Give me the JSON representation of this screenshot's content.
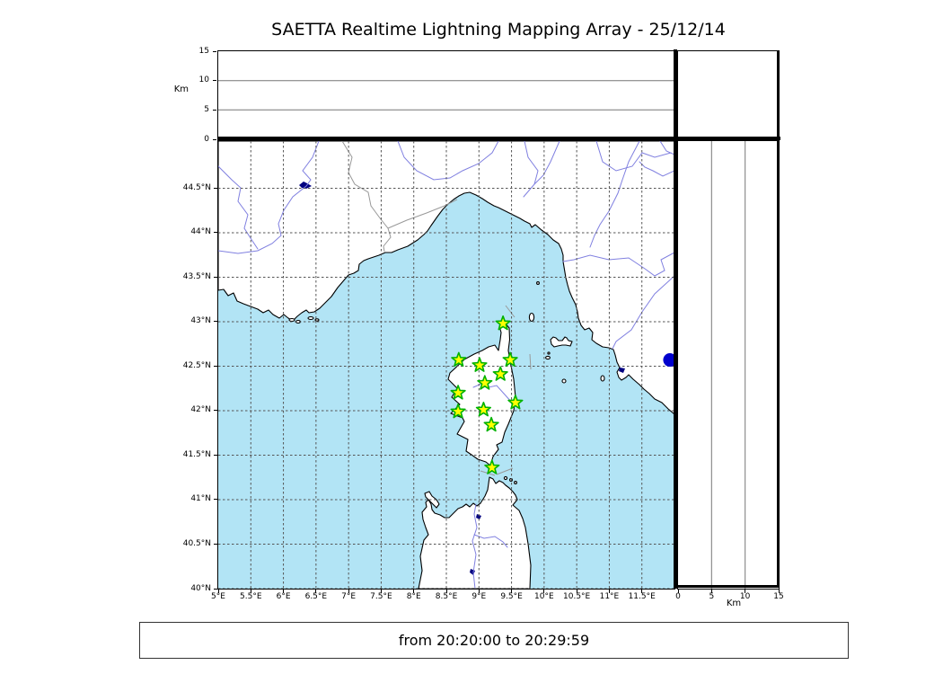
{
  "title": "SAETTA Realtime Lightning Mapping Array - 25/12/14",
  "time_range": "from 20:20:00 to 20:29:59",
  "top_axis": {
    "label": "Km",
    "ticks": [
      "0",
      "5",
      "10",
      "15"
    ]
  },
  "right_axis": {
    "label": "Km",
    "ticks": [
      "0",
      "5",
      "10",
      "15"
    ]
  },
  "map_axes": {
    "lon_ticks": [
      "5°E",
      "5.5°E",
      "6°E",
      "6.5°E",
      "7°E",
      "7.5°E",
      "8°E",
      "8.5°E",
      "9°E",
      "9.5°E",
      "10°E",
      "10.5°E",
      "11°E",
      "11.5°E"
    ],
    "lat_ticks": [
      "44.5°N",
      "44°N",
      "43.5°N",
      "43°N",
      "42.5°N",
      "42°N",
      "41.5°N",
      "41°N",
      "40.5°N",
      "40°N"
    ]
  },
  "colors": {
    "sea": "#b2e4f5",
    "land": "#ffffff",
    "coastline": "#000000",
    "river": "#8080e0",
    "political_border": "#999999",
    "grid": "#555555",
    "panel_grid": "#777777",
    "station_fill": "#ffff00",
    "station_stroke": "#00b200",
    "event_dot": "#0000cd",
    "lake": "#000080"
  },
  "chart_data": {
    "type": "scatter",
    "title": "SAETTA Realtime Lightning Mapping Array - 25/12/14",
    "time_window": {
      "from": "20:20:00",
      "to": "20:29:59"
    },
    "map_extent": {
      "lon": [
        5.0,
        12.0
      ],
      "lat": [
        40.0,
        45.03
      ]
    },
    "grid_interval_deg": 0.5,
    "grid_style": "dashed",
    "altitude_axis_km": {
      "min": 0,
      "max": 15,
      "ticks": [
        0,
        5,
        10,
        15
      ],
      "gridlines": [
        5,
        10
      ]
    },
    "stations": [
      {
        "lon": 9.37,
        "lat": 42.98
      },
      {
        "lon": 8.69,
        "lat": 42.57
      },
      {
        "lon": 9.01,
        "lat": 42.51
      },
      {
        "lon": 9.48,
        "lat": 42.57
      },
      {
        "lon": 9.33,
        "lat": 42.41
      },
      {
        "lon": 9.09,
        "lat": 42.31
      },
      {
        "lon": 8.68,
        "lat": 42.2
      },
      {
        "lon": 9.56,
        "lat": 42.09
      },
      {
        "lon": 8.68,
        "lat": 41.99
      },
      {
        "lon": 9.07,
        "lat": 42.01
      },
      {
        "lon": 9.19,
        "lat": 41.84
      },
      {
        "lon": 9.2,
        "lat": 41.36
      }
    ],
    "event_point": {
      "lon": 11.93,
      "lat": 42.57
    },
    "legend_position": "none"
  }
}
